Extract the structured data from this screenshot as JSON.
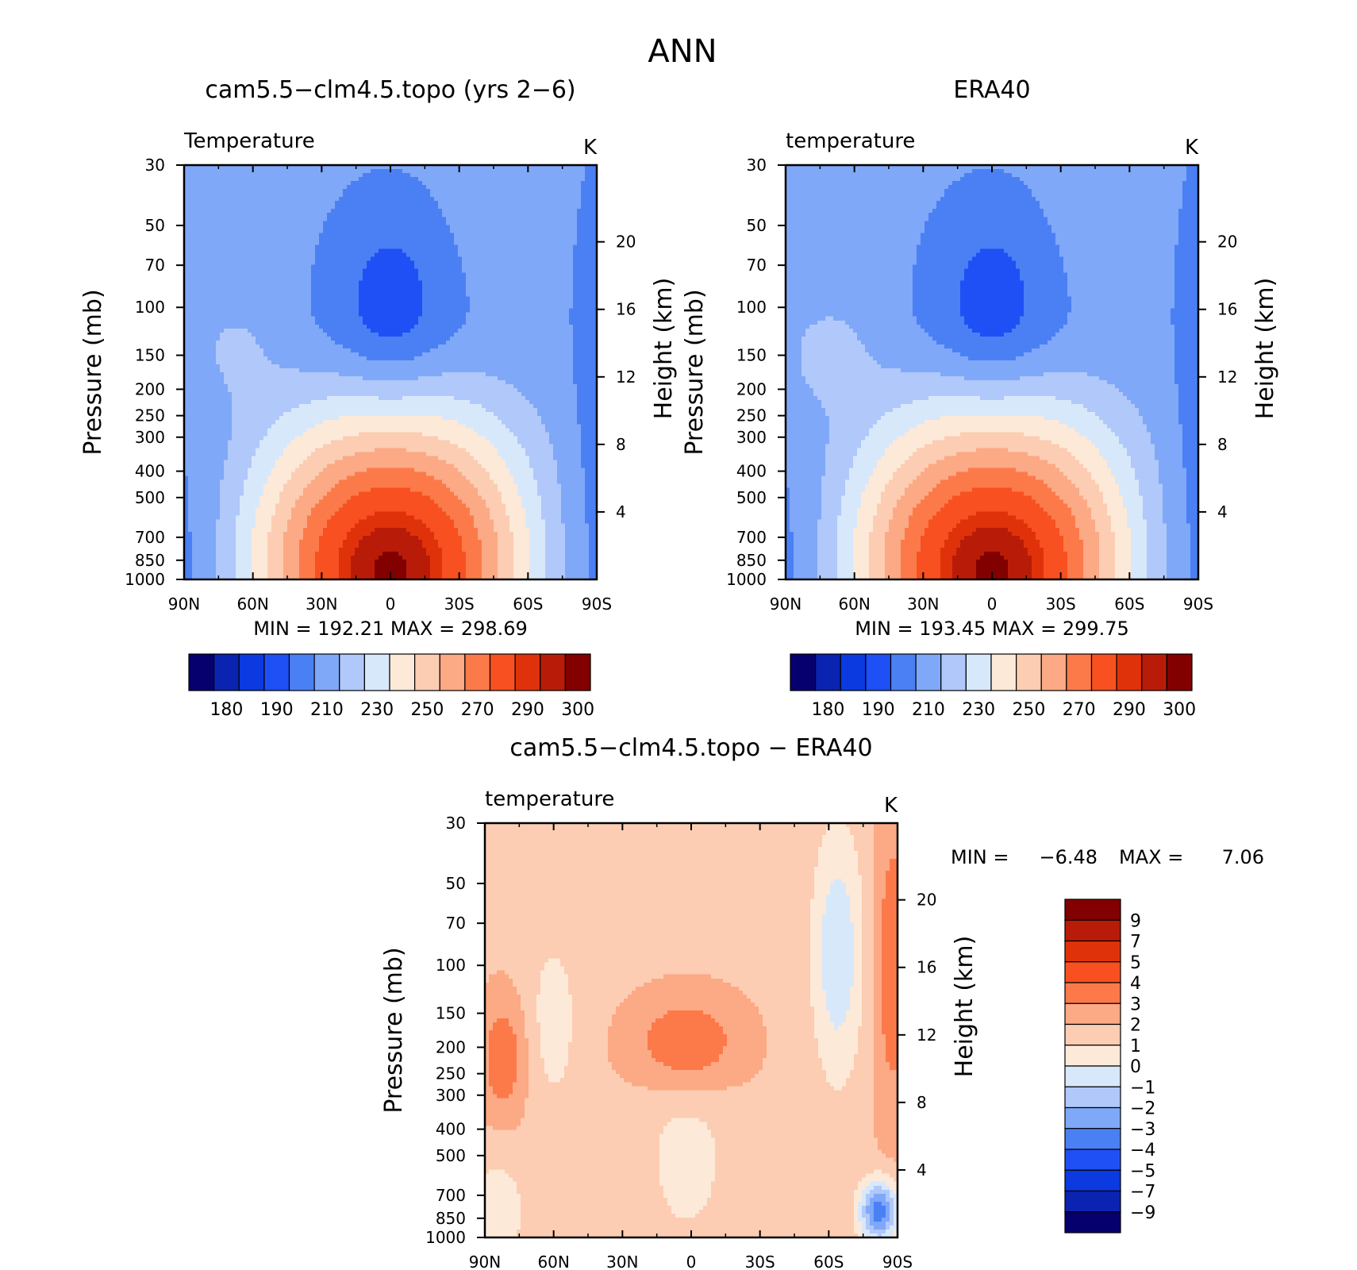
{
  "page_title": "ANN",
  "chart_data": [
    {
      "type": "heatmap",
      "title": "cam5.5−clm4.5.topo (yrs 2−6)",
      "subtitle": "Temperature",
      "units": "K",
      "ylabel": "Pressure (mb)",
      "ylabel_right": "Height (km)",
      "x_ticks": [
        "90N",
        "60N",
        "30N",
        "0",
        "30S",
        "60S",
        "90S"
      ],
      "xlim": [
        90,
        -90
      ],
      "y_ticks": [
        "30",
        "50",
        "70",
        "100",
        "150",
        "200",
        "250",
        "300",
        "400",
        "500",
        "700",
        "850",
        "1000"
      ],
      "ylim": [
        1000,
        30
      ],
      "y_scale": "log",
      "height_ticks": [
        "4",
        "8",
        "12",
        "16",
        "20"
      ],
      "stats": "MIN =  192.21   MAX =  298.69",
      "colorbar": {
        "orientation": "horizontal",
        "labels": [
          "180",
          "190",
          "210",
          "230",
          "250",
          "270",
          "290",
          "300"
        ],
        "colors": [
          "#05006e",
          "#0a23b0",
          "#0a3ae0",
          "#1e50f5",
          "#4b80f5",
          "#80a8f8",
          "#b0c8fa",
          "#d8e8fb",
          "#fde9d8",
          "#fccdb2",
          "#fca985",
          "#fc7a4a",
          "#f85020",
          "#e0320a",
          "#b81c08",
          "#820000"
        ]
      },
      "field": {
        "levels": [
          180,
          185,
          190,
          200,
          210,
          220,
          230,
          240,
          250,
          260,
          270,
          280,
          290,
          295,
          300
        ]
      }
    },
    {
      "type": "heatmap",
      "title": "ERA40",
      "subtitle": "temperature",
      "units": "K",
      "ylabel": "Pressure (mb)",
      "ylabel_right": "Height (km)",
      "x_ticks": [
        "90N",
        "60N",
        "30N",
        "0",
        "30S",
        "60S",
        "90S"
      ],
      "xlim": [
        90,
        -90
      ],
      "y_ticks": [
        "30",
        "50",
        "70",
        "100",
        "150",
        "200",
        "250",
        "300",
        "400",
        "500",
        "700",
        "850",
        "1000"
      ],
      "ylim": [
        1000,
        30
      ],
      "y_scale": "log",
      "height_ticks": [
        "4",
        "8",
        "12",
        "16",
        "20"
      ],
      "stats": "MIN =  193.45   MAX =  299.75",
      "colorbar": {
        "orientation": "horizontal",
        "labels": [
          "180",
          "190",
          "210",
          "230",
          "250",
          "270",
          "290",
          "300"
        ],
        "colors": [
          "#05006e",
          "#0a23b0",
          "#0a3ae0",
          "#1e50f5",
          "#4b80f5",
          "#80a8f8",
          "#b0c8fa",
          "#d8e8fb",
          "#fde9d8",
          "#fccdb2",
          "#fca985",
          "#fc7a4a",
          "#f85020",
          "#e0320a",
          "#b81c08",
          "#820000"
        ]
      },
      "field": {
        "levels": [
          180,
          185,
          190,
          200,
          210,
          220,
          230,
          240,
          250,
          260,
          270,
          280,
          290,
          295,
          300
        ]
      }
    },
    {
      "type": "heatmap",
      "title": "cam5.5−clm4.5.topo − ERA40",
      "subtitle": "temperature",
      "units": "K",
      "ylabel": "Pressure (mb)",
      "ylabel_right": "Height (km)",
      "x_ticks": [
        "90N",
        "60N",
        "30N",
        "0",
        "30S",
        "60S",
        "90S"
      ],
      "xlim": [
        90,
        -90
      ],
      "y_ticks": [
        "30",
        "50",
        "70",
        "100",
        "150",
        "200",
        "250",
        "300",
        "400",
        "500",
        "700",
        "850",
        "1000"
      ],
      "ylim": [
        1000,
        30
      ],
      "y_scale": "log",
      "height_ticks": [
        "4",
        "8",
        "12",
        "16",
        "20"
      ],
      "stats_min_label": "MIN =",
      "stats_min": "−6.48",
      "stats_max_label": "MAX =",
      "stats_max": "7.06",
      "colorbar": {
        "orientation": "vertical",
        "labels": [
          "9",
          "7",
          "5",
          "4",
          "3",
          "2",
          "1",
          "0",
          "−1",
          "−2",
          "−3",
          "−4",
          "−5",
          "−7",
          "−9"
        ],
        "colors": [
          "#820000",
          "#b81c08",
          "#e0320a",
          "#f85020",
          "#fc7a4a",
          "#fca985",
          "#fccdb2",
          "#fde9d8",
          "#d8e8fb",
          "#b0c8fa",
          "#80a8f8",
          "#4b80f5",
          "#1e50f5",
          "#0a3ae0",
          "#0a23b0",
          "#05006e"
        ]
      },
      "field": {
        "levels": [
          -9,
          -7,
          -5,
          -4,
          -3,
          -2,
          -1,
          0,
          1,
          2,
          3,
          4,
          5,
          7,
          9
        ]
      }
    }
  ]
}
